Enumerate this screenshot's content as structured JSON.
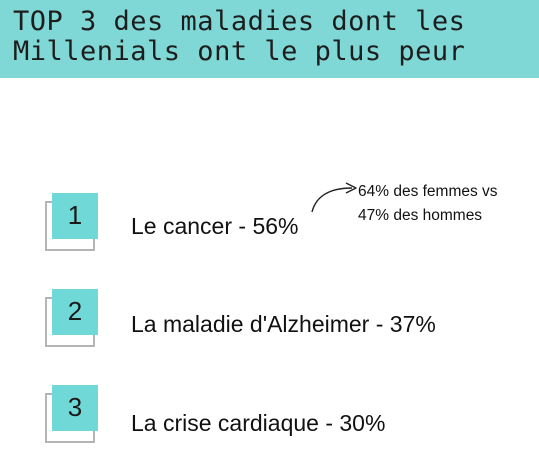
{
  "header": {
    "title_lines": [
      "TOP 3 des maladies dont les",
      "Millenials ont le plus peur"
    ],
    "background": "#7fd8d6"
  },
  "ranking": [
    {
      "rank": "1",
      "label": "Le cancer  - 56%",
      "percent": 56
    },
    {
      "rank": "2",
      "label": "La maladie d'Alzheimer - 37%",
      "percent": 37
    },
    {
      "rank": "3",
      "label": "La crise cardiaque - 30%",
      "percent": 30
    }
  ],
  "note": {
    "lines": [
      "64% des femmes vs",
      "47% des hommes"
    ],
    "icon": "curved-arrow-icon"
  },
  "colors": {
    "accent": "#71d8d8",
    "outline": "#b4b4b4",
    "text": "#111111"
  }
}
